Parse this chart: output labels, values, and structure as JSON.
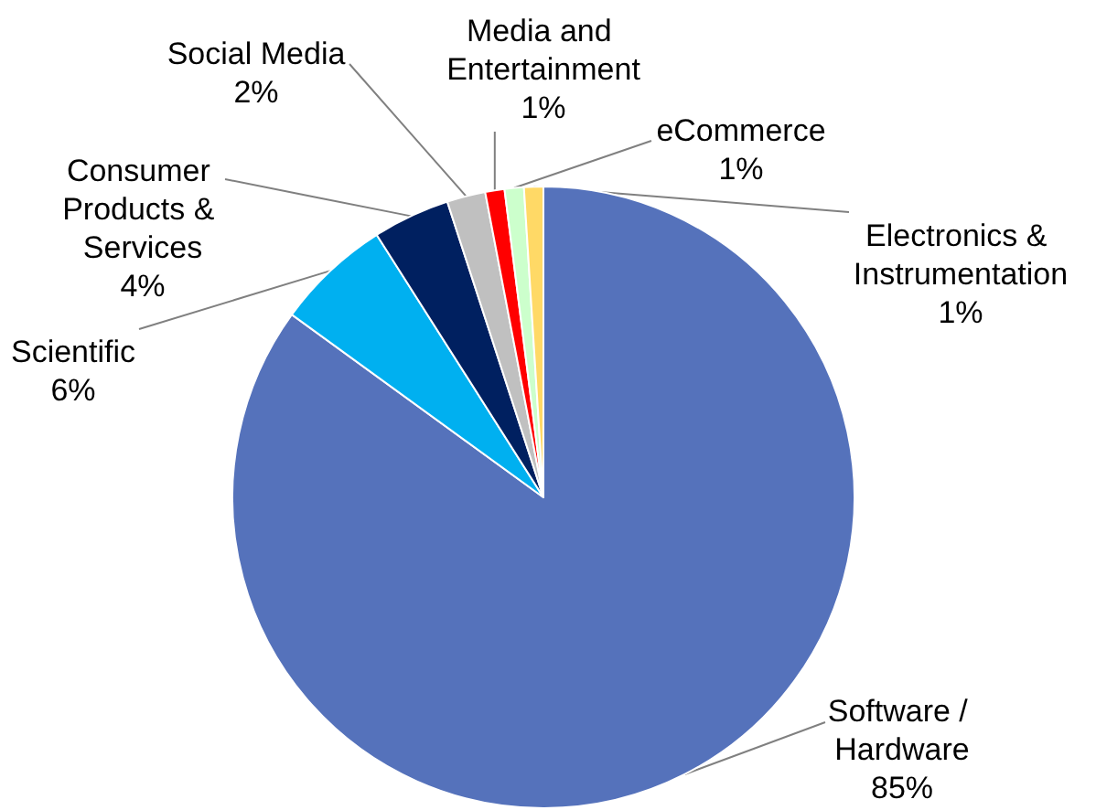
{
  "chart_data": {
    "type": "pie",
    "categories": [
      "Software / Hardware",
      "Scientific",
      "Consumer Products & Services",
      "Social Media",
      "Media and Entertainment",
      "eCommerce",
      "Electronics & Instrumentation"
    ],
    "values": [
      85,
      6,
      4,
      2,
      1,
      1,
      1
    ],
    "colors": [
      "#5572bb",
      "#00b0f0",
      "#002060",
      "#c0c0c0",
      "#ff0000",
      "#ccffcc",
      "#ffd966"
    ],
    "value_labels": [
      "85%",
      "6%",
      "4%",
      "2%",
      "1%",
      "1%",
      "1%"
    ],
    "legend": false
  }
}
